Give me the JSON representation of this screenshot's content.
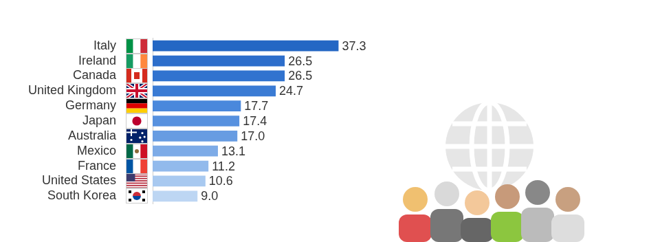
{
  "chart_data": {
    "type": "bar",
    "orientation": "horizontal",
    "categories": [
      "Italy",
      "Ireland",
      "Canada",
      "United Kingdom",
      "Germany",
      "Japan",
      "Australia",
      "Mexico",
      "France",
      "United States",
      "South Korea"
    ],
    "values": [
      37.3,
      26.5,
      26.5,
      24.7,
      17.7,
      17.4,
      17.0,
      13.1,
      11.2,
      10.6,
      9.0
    ],
    "value_labels": [
      "37.3",
      "26.5",
      "26.5",
      "24.7",
      "17.7",
      "17.4",
      "17.0",
      "13.1",
      "11.2",
      "10.6",
      "9.0"
    ],
    "colors": [
      "#2467c4",
      "#2d6ecb",
      "#3173cf",
      "#3a7bd4",
      "#4a88dc",
      "#5791df",
      "#679ce2",
      "#7dabe7",
      "#92baec",
      "#a8c9f0",
      "#bdd6f3"
    ],
    "xlim": [
      0,
      40
    ],
    "grid": false,
    "data_labels": true,
    "tick_labels": "y"
  }
}
